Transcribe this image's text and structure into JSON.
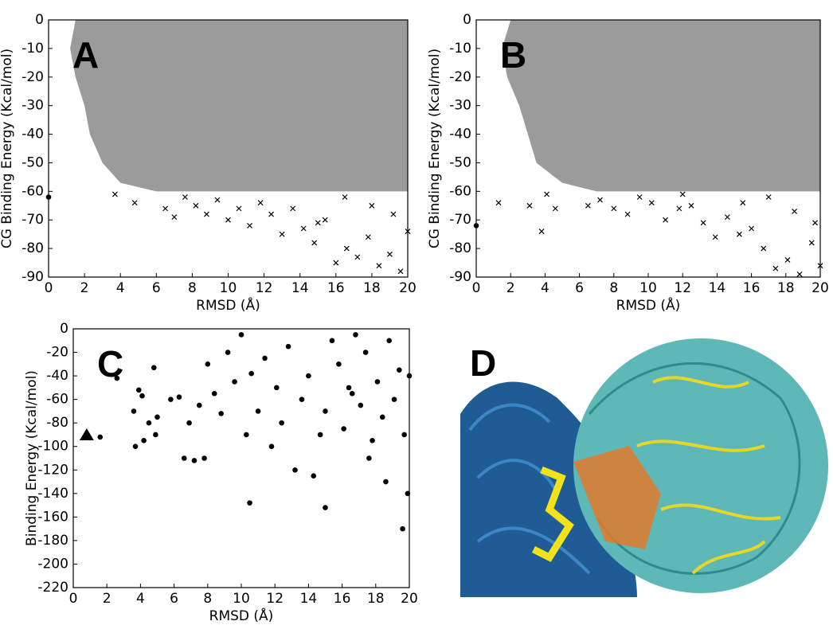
{
  "chart_data": [
    {
      "type": "scatter",
      "panel_label": "A",
      "x_label": "RMSD (Å)",
      "y_label": "CG Binding Energy (Kcal/mol)",
      "xlim": [
        0,
        20
      ],
      "ylim": [
        -90,
        0
      ],
      "xticks": [
        0,
        2,
        4,
        6,
        8,
        10,
        12,
        14,
        16,
        18,
        20
      ],
      "yticks": [
        0,
        -10,
        -20,
        -30,
        -40,
        -50,
        -60,
        -70,
        -80,
        -90
      ],
      "series": [
        {
          "mode": "area",
          "color": "#9b9b9b",
          "x": [
            1.5,
            1.2,
            1.5,
            2,
            2.3,
            3,
            4,
            6,
            20,
            20
          ],
          "values": [
            0,
            -10,
            -20,
            -30,
            -40,
            -50,
            -57,
            -60,
            -60,
            0
          ]
        },
        {
          "mode": "marker",
          "marker": "x",
          "color": "#000000",
          "x": [
            3.7,
            4.8,
            6.5,
            7.0,
            7.6,
            8.2,
            8.8,
            9.4,
            10.0,
            10.6,
            11.2,
            11.8,
            12.4,
            13.0,
            13.6,
            14.2,
            14.8,
            15.4,
            16.0,
            16.6,
            17.2,
            17.8,
            18.4,
            19.0,
            19.6,
            20.0,
            16.5,
            18.0,
            19.2,
            15.0
          ],
          "values": [
            -61,
            -64,
            -66,
            -69,
            -62,
            -65,
            -68,
            -63,
            -70,
            -66,
            -72,
            -64,
            -68,
            -75,
            -66,
            -73,
            -78,
            -70,
            -85,
            -80,
            -83,
            -76,
            -86,
            -82,
            -88,
            -74,
            -62,
            -65,
            -68,
            -71
          ]
        },
        {
          "mode": "marker",
          "marker": "circle",
          "color": "#000000",
          "x": [
            0
          ],
          "values": [
            -62
          ]
        }
      ]
    },
    {
      "type": "scatter",
      "panel_label": "B",
      "x_label": "RMSD (Å)",
      "y_label": "CG Binding Energy (Kcal/mol)",
      "xlim": [
        0,
        20
      ],
      "ylim": [
        -90,
        0
      ],
      "xticks": [
        0,
        2,
        4,
        6,
        8,
        10,
        12,
        14,
        16,
        18,
        20
      ],
      "yticks": [
        0,
        -10,
        -20,
        -30,
        -40,
        -50,
        -60,
        -70,
        -80,
        -90
      ],
      "series": [
        {
          "mode": "area",
          "color": "#9b9b9b",
          "x": [
            2,
            1.5,
            1.8,
            2.5,
            3,
            3.5,
            5,
            7,
            20,
            20
          ],
          "values": [
            0,
            -10,
            -20,
            -30,
            -40,
            -50,
            -57,
            -60,
            -60,
            0
          ]
        },
        {
          "mode": "marker",
          "marker": "x",
          "color": "#000000",
          "x": [
            1.3,
            3.1,
            3.8,
            4.1,
            4.6,
            6.5,
            7.2,
            8.0,
            8.8,
            9.5,
            10.2,
            11.0,
            11.8,
            12.5,
            13.2,
            13.9,
            14.6,
            15.3,
            16.0,
            16.7,
            17.4,
            18.1,
            18.8,
            19.5,
            20.0,
            17.0,
            18.5,
            19.7,
            15.5,
            12.0
          ],
          "values": [
            -64,
            -65,
            -74,
            -61,
            -66,
            -65,
            -63,
            -66,
            -68,
            -62,
            -64,
            -70,
            -66,
            -65,
            -71,
            -76,
            -69,
            -75,
            -73,
            -80,
            -87,
            -84,
            -89,
            -78,
            -86,
            -62,
            -67,
            -71,
            -64,
            -61
          ]
        },
        {
          "mode": "marker",
          "marker": "circle",
          "color": "#000000",
          "x": [
            0
          ],
          "values": [
            -72
          ]
        }
      ]
    },
    {
      "type": "scatter",
      "panel_label": "C",
      "x_label": "RMSD (Å)",
      "y_label": "Binding Energy (Kcal/mol)",
      "xlim": [
        0,
        20
      ],
      "ylim": [
        -220,
        0
      ],
      "xticks": [
        0,
        2,
        4,
        6,
        8,
        10,
        12,
        14,
        16,
        18,
        20
      ],
      "yticks": [
        0,
        -20,
        -40,
        -60,
        -80,
        -100,
        -120,
        -140,
        -160,
        -180,
        -200,
        -220
      ],
      "series": [
        {
          "mode": "marker",
          "marker": "circle",
          "color": "#000000",
          "x": [
            1.6,
            2.6,
            3.6,
            3.7,
            3.9,
            4.1,
            4.2,
            4.5,
            4.8,
            4.9,
            5.0,
            5.8,
            6.3,
            6.6,
            6.9,
            7.2,
            7.5,
            7.8,
            8.0,
            8.4,
            8.8,
            9.2,
            9.6,
            10.0,
            10.3,
            10.6,
            11.0,
            11.4,
            11.8,
            12.1,
            12.4,
            12.8,
            13.2,
            13.6,
            14.0,
            14.3,
            14.7,
            15.0,
            15.4,
            15.8,
            16.1,
            16.4,
            16.8,
            17.1,
            17.4,
            17.8,
            18.1,
            18.4,
            18.8,
            19.1,
            19.4,
            19.7,
            19.9,
            20.0,
            19.6,
            18.6,
            17.6,
            16.6,
            10.5,
            15.0
          ],
          "values": [
            -92,
            -42,
            -70,
            -100,
            -52,
            -57,
            -95,
            -80,
            -33,
            -90,
            -75,
            -60,
            -58,
            -110,
            -80,
            -112,
            -65,
            -110,
            -30,
            -55,
            -72,
            -20,
            -45,
            -5,
            -90,
            -38,
            -70,
            -25,
            -100,
            -50,
            -80,
            -15,
            -120,
            -60,
            -40,
            -125,
            -90,
            -70,
            -10,
            -30,
            -85,
            -50,
            -5,
            -65,
            -20,
            -95,
            -45,
            -75,
            -10,
            -60,
            -35,
            -90,
            -140,
            -40,
            -170,
            -130,
            -110,
            -55,
            -148,
            -152
          ]
        },
        {
          "mode": "marker",
          "marker": "triangle",
          "color": "#000000",
          "x": [
            0.8
          ],
          "values": [
            -90
          ]
        }
      ]
    }
  ],
  "panel_d": {
    "label": "D"
  }
}
